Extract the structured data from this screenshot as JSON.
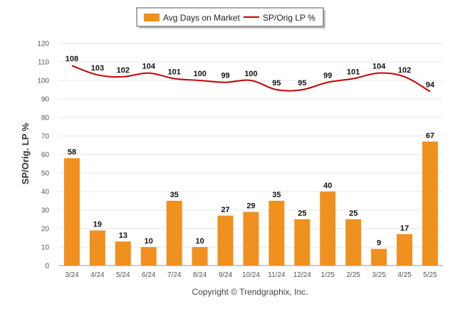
{
  "chart_data": {
    "type": "bar",
    "categories": [
      "3/24",
      "4/24",
      "5/24",
      "6/24",
      "7/24",
      "8/24",
      "9/24",
      "10/24",
      "11/24",
      "12/24",
      "1/25",
      "2/25",
      "3/25",
      "4/25",
      "5/25"
    ],
    "series": [
      {
        "name": "Avg Days on Market",
        "type": "bar",
        "color": "#f0901e",
        "values": [
          58,
          19,
          13,
          10,
          35,
          10,
          27,
          29,
          35,
          25,
          40,
          25,
          9,
          17,
          67
        ]
      },
      {
        "name": "SP/Orig LP %",
        "type": "line",
        "color": "#c80000",
        "values": [
          108,
          103,
          102,
          104,
          101,
          100,
          99,
          100,
          95,
          95,
          99,
          101,
          104,
          102,
          94
        ]
      }
    ],
    "ylabel": "SP/Orig. LP %",
    "ylim": [
      0,
      120
    ],
    "yticks": [
      0,
      10,
      20,
      30,
      40,
      50,
      60,
      70,
      80,
      90,
      100,
      110,
      120
    ],
    "grid": true,
    "legend_position": "top-center"
  },
  "footer": {
    "copyright": "Copyright © Trendgraphix, Inc."
  }
}
